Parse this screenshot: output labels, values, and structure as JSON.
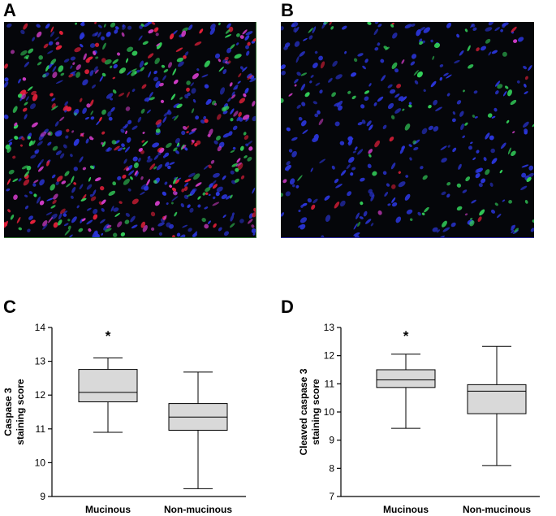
{
  "panels": {
    "a": {
      "label": "A",
      "image": "immunofluorescence-micrograph-mucinous"
    },
    "b": {
      "label": "B",
      "image": "immunofluorescence-micrograph-non-mucinous"
    },
    "c": {
      "label": "C"
    },
    "d": {
      "label": "D"
    }
  },
  "colors": {
    "box_fill": "#d9d9d9",
    "line": "#000000",
    "nucleus": "#2a35d8",
    "marker_red": "#e5203a",
    "marker_green": "#33d05a",
    "marker_magenta": "#d23cc8"
  },
  "chart_data": [
    {
      "type": "box",
      "panel": "C",
      "ylabel": "Caspase 3\nstaining score",
      "ylim": [
        9,
        14
      ],
      "yticks": [
        9,
        10,
        11,
        12,
        13,
        14
      ],
      "categories": [
        "Mucinous",
        "Non-mucinous"
      ],
      "boxes": [
        {
          "min": 10.9,
          "q1": 11.8,
          "median": 12.08,
          "q3": 12.76,
          "max": 13.1
        },
        {
          "min": 9.23,
          "q1": 10.96,
          "median": 11.35,
          "q3": 11.75,
          "max": 12.68
        }
      ],
      "annotations": [
        {
          "category": "Mucinous",
          "text": "*"
        }
      ]
    },
    {
      "type": "box",
      "panel": "D",
      "ylabel": "Cleaved caspase 3\nstaining score",
      "ylim": [
        7,
        13
      ],
      "yticks": [
        7,
        8,
        9,
        10,
        11,
        12,
        13
      ],
      "categories": [
        "Mucinous",
        "Non-mucinous"
      ],
      "boxes": [
        {
          "min": 9.42,
          "q1": 10.87,
          "median": 11.14,
          "q3": 11.5,
          "max": 12.05
        },
        {
          "min": 8.1,
          "q1": 9.94,
          "median": 10.74,
          "q3": 10.97,
          "max": 12.33
        }
      ],
      "annotations": [
        {
          "category": "Mucinous",
          "text": "*"
        }
      ]
    }
  ]
}
